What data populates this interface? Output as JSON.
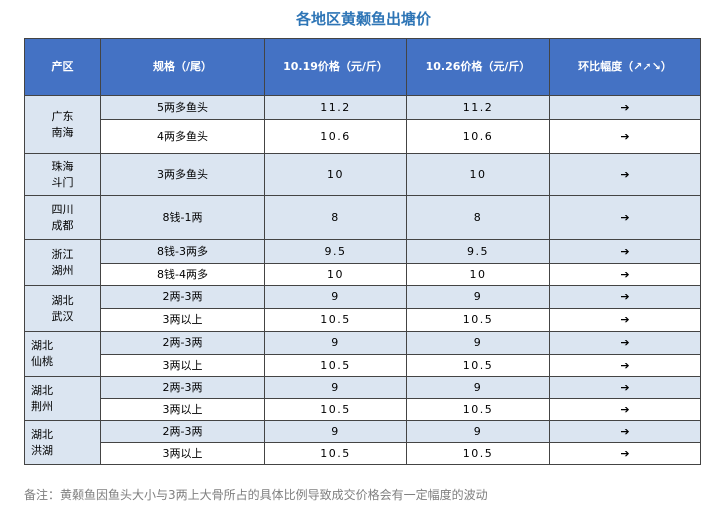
{
  "title": "各地区黄颡鱼出塘价",
  "table": {
    "header": [
      [
        "产区"
      ],
      [
        "规格（/尾）"
      ],
      [
        "10.19价格",
        "（元/斤）"
      ],
      [
        "10.26价格",
        "（元/斤）"
      ],
      [
        "环比幅度",
        "（↗➚↘）"
      ]
    ],
    "groups": [
      {
        "region": [
          "广东",
          "南海"
        ],
        "rows": [
          {
            "spec": "5两多鱼头",
            "p1": 11.2,
            "p2": 11.2,
            "change": "➔"
          },
          {
            "spec": "4两多鱼头",
            "p1": 10.6,
            "p2": 10.6,
            "change": "➔"
          }
        ]
      },
      {
        "region": [
          "珠海",
          "斗门"
        ],
        "rows": [
          {
            "spec": "3两多鱼头",
            "p1": 10,
            "p2": 10,
            "change": "➔"
          }
        ]
      },
      {
        "region": [
          "四川",
          "成都"
        ],
        "rows": [
          {
            "spec": "8钱-1两",
            "p1": 8,
            "p2": 8,
            "change": "➔"
          }
        ]
      },
      {
        "region": [
          "浙江",
          "湖州"
        ],
        "rows": [
          {
            "spec": "8钱-3两多",
            "p1": 9.5,
            "p2": 9.5,
            "change": "➔"
          },
          {
            "spec": "8钱-4两多",
            "p1": 10,
            "p2": 10,
            "change": "➔"
          }
        ]
      },
      {
        "region": [
          "湖北",
          "武汉"
        ],
        "rows": [
          {
            "spec": "2两-3两",
            "p1": 9,
            "p2": 9,
            "change": "➔"
          },
          {
            "spec": "3两以上",
            "p1": 10.5,
            "p2": 10.5,
            "change": "➔"
          }
        ]
      },
      {
        "region": [
          "湖北",
          "仙桃"
        ],
        "rows": [
          {
            "spec": "2两-3两",
            "p1": 9,
            "p2": 9,
            "change": "➔"
          },
          {
            "spec": "3两以上",
            "p1": 10.5,
            "p2": 10.5,
            "change": "➔"
          }
        ]
      },
      {
        "region": [
          "湖北",
          "荆州"
        ],
        "rows": [
          {
            "spec": "2两-3两",
            "p1": 9,
            "p2": 9,
            "change": "➔"
          },
          {
            "spec": "3两以上",
            "p1": 10.5,
            "p2": 10.5,
            "change": "➔"
          }
        ]
      },
      {
        "region": [
          "湖北",
          "洪湖"
        ],
        "rows": [
          {
            "spec": "2两-3两",
            "p1": 9,
            "p2": 9,
            "change": "➔"
          },
          {
            "spec": "3两以上",
            "p1": 10.5,
            "p2": 10.5,
            "change": "➔"
          }
        ]
      }
    ]
  },
  "note": "备注：黄颡鱼因鱼头大小与3两上大骨所占的具体比例导致成交价格会有一定幅度的波动"
}
